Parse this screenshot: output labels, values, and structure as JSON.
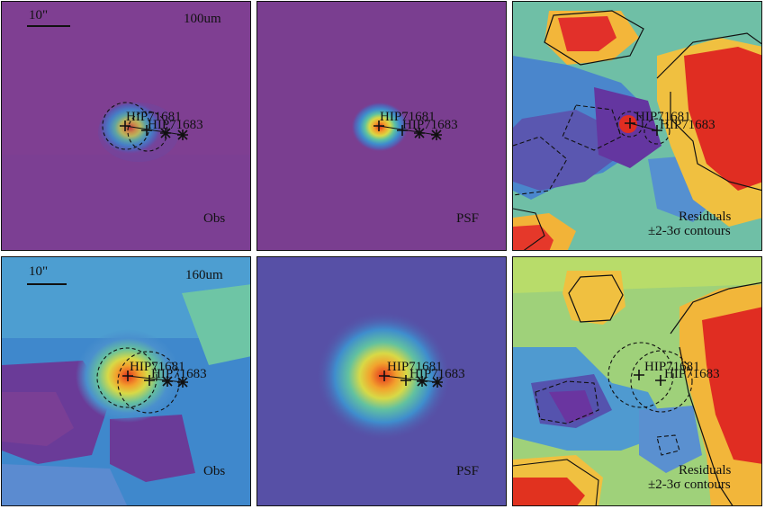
{
  "figure": {
    "rows": [
      {
        "band": "100um",
        "scalebar": "10\"",
        "panels": [
          {
            "kind": "obs",
            "label": "Obs"
          },
          {
            "kind": "psf",
            "label": "PSF"
          },
          {
            "kind": "residuals",
            "label": "Residuals",
            "label2": "±2-3σ contours"
          }
        ]
      },
      {
        "band": "160um",
        "scalebar": "10\"",
        "panels": [
          {
            "kind": "obs",
            "label": "Obs"
          },
          {
            "kind": "psf",
            "label": "PSF"
          },
          {
            "kind": "residuals",
            "label": "Residuals",
            "label2": "±2-3σ contours"
          }
        ]
      }
    ],
    "sources": [
      "HIP71681",
      "HIP71683"
    ],
    "colors": {
      "background_100_obs": "#7f3f92",
      "background_100_psf": "#7a3e90",
      "background_160_psf": "#5750a6",
      "peak": "#e32a1c",
      "residual_high": "#e02d22",
      "residual_low": "#6a35a0"
    }
  }
}
